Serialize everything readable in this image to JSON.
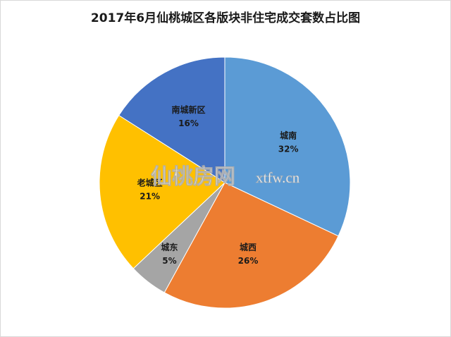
{
  "chart_data": {
    "type": "pie",
    "title": "2017年6月仙桃城区各版块非住宅成交套数占比图",
    "categories": [
      "城南",
      "城西",
      "城东",
      "老城区",
      "南城新区"
    ],
    "values": [
      32,
      26,
      5,
      21,
      16
    ],
    "value_labels": [
      "32%",
      "26%",
      "5%",
      "21%",
      "16%"
    ],
    "colors": [
      "#5b9bd5",
      "#ed7d31",
      "#a5a5a5",
      "#ffc000",
      "#4472c4"
    ],
    "watermark": [
      "仙桃房网",
      "xtfw.cn"
    ]
  }
}
